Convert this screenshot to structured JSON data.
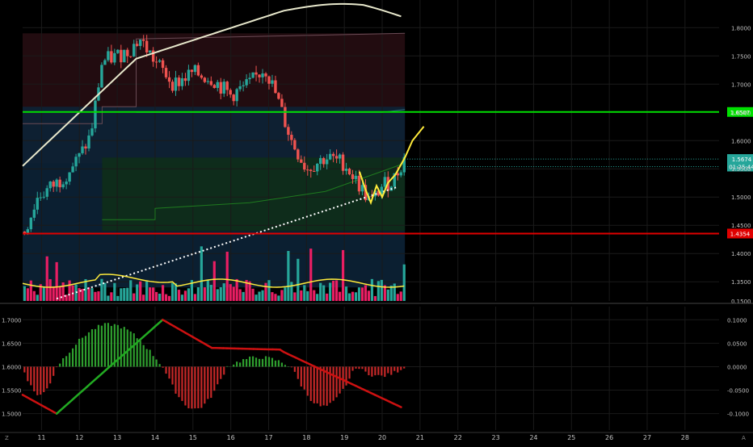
{
  "chart_data": [
    {
      "type": "candlestick",
      "title": "",
      "x_axis": {
        "tick_labels": [
          "11",
          "12",
          "13",
          "14",
          "15",
          "16",
          "17",
          "18",
          "19",
          "20",
          "21",
          "22",
          "23",
          "24",
          "25",
          "26",
          "27",
          "28"
        ],
        "range": [
          10.5,
          28.9
        ]
      },
      "y_axis": {
        "position": "right",
        "range": [
          1.316,
          1.849
        ],
        "tick_values": [
          1.35,
          1.4,
          1.45,
          1.5,
          1.55,
          1.6,
          1.65,
          1.7,
          1.75,
          1.8
        ],
        "tick_labels": [
          "1.3500",
          "1.4000",
          "1.4500",
          "1.5000",
          "1.5500",
          "1.6000",
          "1.6500",
          "1.7000",
          "1.7500",
          "1.8000"
        ],
        "scale": "linear"
      },
      "horizontal_levels": [
        {
          "value": 1.6507,
          "label": "1.6507",
          "color": "#00e000"
        },
        {
          "value": 1.4354,
          "label": "1.4354",
          "color": "#e00000"
        }
      ],
      "price_labels": [
        {
          "value": 1.5674,
          "label": "1.5674",
          "color": "#26a69a"
        },
        {
          "value": 1.554,
          "label": "01:25:44",
          "color": "#26a69a"
        }
      ],
      "bottom_axis_label": "0.1500",
      "colors": {
        "up": "#26a69a",
        "down": "#ef5350",
        "long_ma": "#e8e8cc",
        "vwap": "#ffffff",
        "projection": "#ffeb3b",
        "volume_up": "#26a69a",
        "volume_down": "#e91e63"
      }
    },
    {
      "type": "macd",
      "y_axis": {
        "position": "right",
        "range": [
          -0.135,
          0.128
        ],
        "tick_values": [
          0.1,
          0.05,
          0.0,
          -0.05,
          -0.1
        ],
        "tick_labels": [
          "0.1000",
          "0.0500",
          "0.0000",
          "-0.0500",
          "-0.1000"
        ]
      },
      "left_axis": {
        "tick_values": [
          1.7,
          1.65,
          1.6,
          1.55,
          1.5
        ],
        "tick_labels": [
          "1.7000",
          "1.6500",
          "1.6000",
          "1.5500",
          "1.5000"
        ]
      },
      "colors": {
        "positive": "#2e9e2e",
        "negative": "#c62828",
        "line_up": "#22aa22",
        "line_down": "#cc1111"
      }
    }
  ],
  "corner_labels": {
    "bottom_left": "Z",
    "bottom_right": "A"
  }
}
